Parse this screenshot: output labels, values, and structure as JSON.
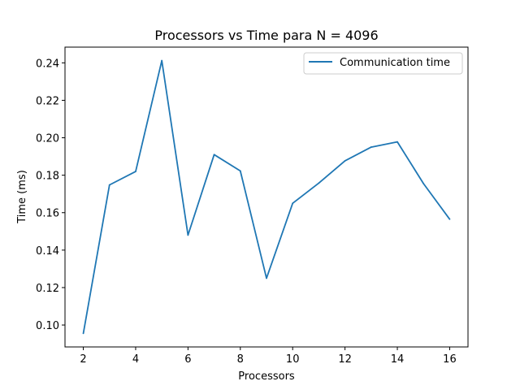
{
  "chart_data": {
    "type": "line",
    "title": "Processors vs Time para N = 4096",
    "xlabel": "Processors",
    "ylabel": "Time (ms)",
    "x": [
      2,
      3,
      4,
      5,
      6,
      7,
      8,
      9,
      10,
      11,
      12,
      13,
      14,
      15,
      16
    ],
    "series": [
      {
        "name": "Communication time",
        "color": "#1f77b4",
        "values": [
          0.0955,
          0.1748,
          0.182,
          0.2412,
          0.148,
          0.191,
          0.1823,
          0.125,
          0.165,
          0.1758,
          0.1877,
          0.195,
          0.1978,
          0.1755,
          0.1565
        ]
      }
    ],
    "xlim": [
      1.3,
      16.7
    ],
    "ylim": [
      0.0883,
      0.2484
    ],
    "xticks": [
      2,
      4,
      6,
      8,
      10,
      12,
      14,
      16
    ],
    "yticks": [
      0.1,
      0.12,
      0.14,
      0.16,
      0.18,
      0.2,
      0.22,
      0.24
    ],
    "ytick_decimals": 2,
    "grid": false,
    "legend_position": "top-right"
  }
}
